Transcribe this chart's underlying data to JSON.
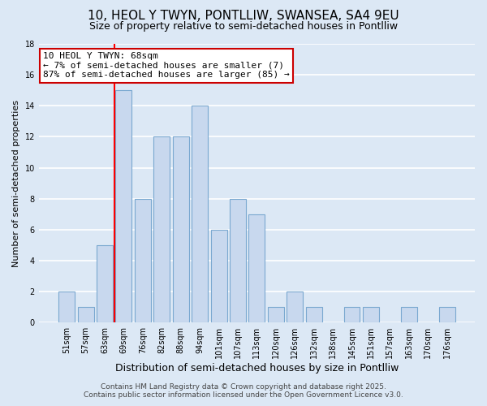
{
  "title": "10, HEOL Y TWYN, PONTLLIW, SWANSEA, SA4 9EU",
  "subtitle": "Size of property relative to semi-detached houses in Pontlliw",
  "xlabel": "Distribution of semi-detached houses by size in Pontlliw",
  "ylabel": "Number of semi-detached properties",
  "bar_labels": [
    "51sqm",
    "57sqm",
    "63sqm",
    "69sqm",
    "76sqm",
    "82sqm",
    "88sqm",
    "94sqm",
    "101sqm",
    "107sqm",
    "113sqm",
    "120sqm",
    "126sqm",
    "132sqm",
    "138sqm",
    "145sqm",
    "151sqm",
    "157sqm",
    "163sqm",
    "170sqm",
    "176sqm"
  ],
  "bar_values": [
    2,
    1,
    5,
    15,
    8,
    12,
    12,
    14,
    6,
    8,
    7,
    1,
    2,
    1,
    0,
    1,
    1,
    0,
    1,
    0,
    1
  ],
  "bar_color": "#c8d8ee",
  "bar_edge_color": "#7aa8d0",
  "red_line_index": 3,
  "ylim": [
    0,
    18
  ],
  "yticks": [
    0,
    2,
    4,
    6,
    8,
    10,
    12,
    14,
    16,
    18
  ],
  "annotation_title": "10 HEOL Y TWYN: 68sqm",
  "annotation_line1": "← 7% of semi-detached houses are smaller (7)",
  "annotation_line2": "87% of semi-detached houses are larger (85) →",
  "annotation_box_color": "#ffffff",
  "annotation_box_edge": "#cc0000",
  "background_color": "#dce8f5",
  "grid_color": "#ffffff",
  "footer_line1": "Contains HM Land Registry data © Crown copyright and database right 2025.",
  "footer_line2": "Contains public sector information licensed under the Open Government Licence v3.0.",
  "title_fontsize": 11,
  "subtitle_fontsize": 9,
  "xlabel_fontsize": 9,
  "ylabel_fontsize": 8,
  "tick_fontsize": 7,
  "annotation_fontsize": 8,
  "footer_fontsize": 6.5
}
